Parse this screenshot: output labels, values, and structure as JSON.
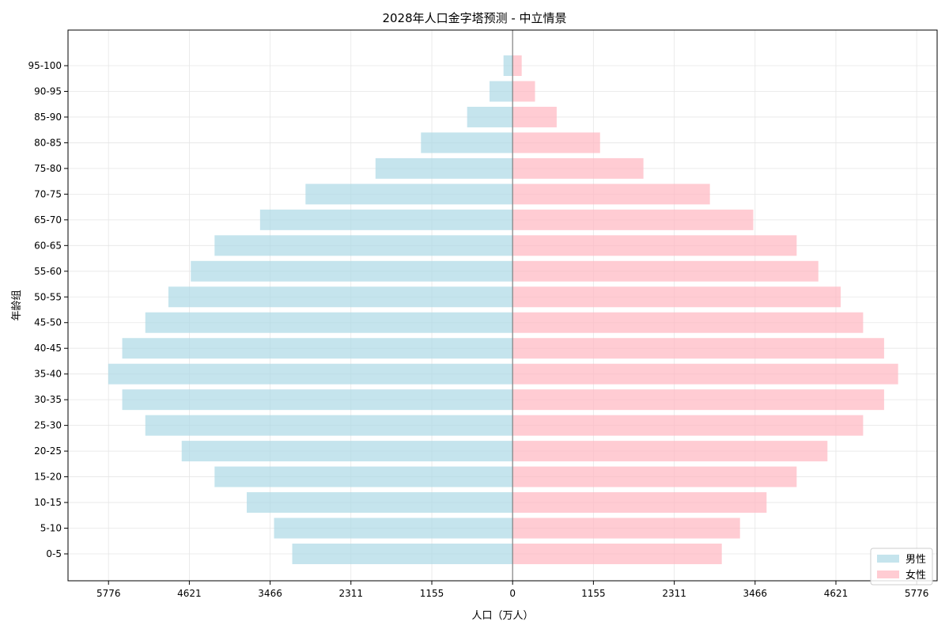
{
  "chart_data": {
    "type": "bar",
    "orientation": "horizontal",
    "title": "2028年人口金字塔预测 - 中立情景",
    "xlabel": "人口（万人）",
    "ylabel": "年龄组",
    "categories": [
      "0-5",
      "5-10",
      "10-15",
      "15-20",
      "20-25",
      "25-30",
      "30-35",
      "35-40",
      "40-45",
      "45-50",
      "50-55",
      "55-60",
      "60-65",
      "65-70",
      "70-75",
      "75-80",
      "80-85",
      "85-90",
      "90-95",
      "95-100"
    ],
    "series": [
      {
        "name": "男性",
        "color": "#add8e6",
        "side": "left",
        "values": [
          3150,
          3410,
          3800,
          4260,
          4730,
          5250,
          5580,
          5780,
          5580,
          5250,
          4920,
          4600,
          4260,
          3610,
          2960,
          1960,
          1310,
          650,
          330,
          130
        ]
      },
      {
        "name": "女性",
        "color": "#ffb6c1",
        "side": "right",
        "values": [
          2990,
          3250,
          3630,
          4060,
          4500,
          5010,
          5310,
          5510,
          5310,
          5010,
          4690,
          4370,
          4060,
          3440,
          2820,
          1870,
          1250,
          630,
          320,
          130
        ]
      }
    ],
    "x_ticks": [
      -5776,
      -4621,
      -3466,
      -2311,
      -1155,
      0,
      1155,
      2311,
      3466,
      4621,
      5776
    ],
    "x_tick_labels": [
      "5776",
      "4621",
      "3466",
      "2311",
      "1155",
      "0",
      "1155",
      "2311",
      "3466",
      "4621",
      "5776"
    ],
    "xlim": [
      -6355,
      6068
    ],
    "grid": true,
    "legend_position": "bottom-right"
  }
}
